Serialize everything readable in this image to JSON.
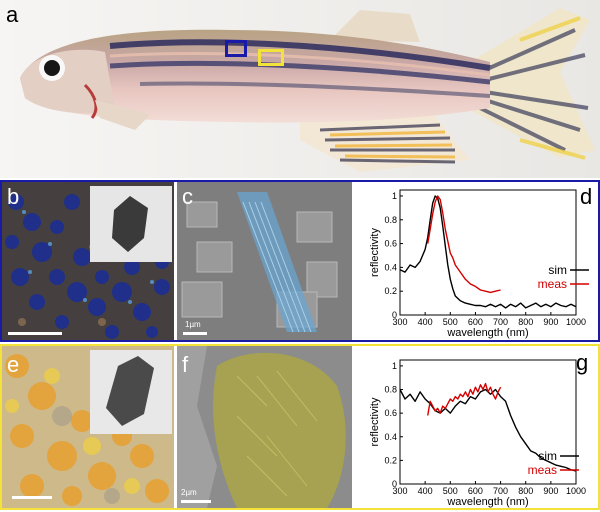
{
  "panels": {
    "a": {
      "label": "a"
    },
    "b": {
      "label": "b"
    },
    "c": {
      "label": "c",
      "scale_text": "1µm"
    },
    "d": {
      "label": "d"
    },
    "e": {
      "label": "e"
    },
    "f": {
      "label": "f",
      "scale_text": "2µm"
    },
    "g": {
      "label": "g"
    }
  },
  "colors": {
    "sim": "#000000",
    "meas": "#d40000",
    "blue_frame": "#1a1aa8",
    "yellow_frame": "#f2e23a"
  },
  "chart_data": [
    {
      "type": "line",
      "panel": "d",
      "xlabel": "wavelength (nm)",
      "ylabel": "reflectivity",
      "xlim": [
        300,
        1000
      ],
      "ylim": [
        0,
        1.05
      ],
      "xticks": [
        300,
        400,
        500,
        600,
        700,
        800,
        900,
        1000
      ],
      "yticks": [
        0,
        0.2,
        0.4,
        0.6,
        0.8,
        1
      ],
      "ytick_labels": [
        "0",
        "0.2",
        "0.4",
        "0.6",
        "0.8",
        "1"
      ],
      "legend": "right",
      "series": [
        {
          "name": "sim",
          "color": "#000000",
          "x": [
            300,
            320,
            340,
            360,
            380,
            400,
            410,
            420,
            430,
            440,
            450,
            460,
            470,
            480,
            490,
            500,
            510,
            520,
            540,
            560,
            580,
            600,
            620,
            640,
            660,
            680,
            700,
            720,
            740,
            760,
            780,
            800,
            820,
            840,
            860,
            880,
            900,
            920,
            940,
            960,
            980,
            1000
          ],
          "y": [
            0.38,
            0.36,
            0.42,
            0.4,
            0.45,
            0.55,
            0.65,
            0.8,
            0.94,
            1.0,
            0.98,
            0.9,
            0.75,
            0.58,
            0.42,
            0.3,
            0.22,
            0.16,
            0.12,
            0.1,
            0.09,
            0.08,
            0.08,
            0.07,
            0.09,
            0.07,
            0.09,
            0.06,
            0.09,
            0.07,
            0.1,
            0.06,
            0.08,
            0.1,
            0.07,
            0.09,
            0.07,
            0.1,
            0.08,
            0.07,
            0.09,
            0.07
          ]
        },
        {
          "name": "meas",
          "color": "#d40000",
          "x": [
            410,
            420,
            430,
            440,
            450,
            460,
            470,
            480,
            490,
            500,
            510,
            520,
            540,
            560,
            580,
            600,
            620,
            640,
            660,
            680,
            700
          ],
          "y": [
            0.6,
            0.72,
            0.85,
            0.95,
            1.0,
            0.97,
            0.86,
            0.72,
            0.62,
            0.52,
            0.48,
            0.42,
            0.36,
            0.3,
            0.26,
            0.24,
            0.21,
            0.2,
            0.19,
            0.2,
            0.21
          ]
        }
      ]
    },
    {
      "type": "line",
      "panel": "g",
      "xlabel": "wavelength (nm)",
      "ylabel": "reflectivity",
      "xlim": [
        300,
        1000
      ],
      "ylim": [
        0,
        1.05
      ],
      "xticks": [
        300,
        400,
        500,
        600,
        700,
        800,
        900,
        1000
      ],
      "yticks": [
        0,
        0.2,
        0.4,
        0.6,
        0.8,
        1
      ],
      "ytick_labels": [
        "0",
        "0.2",
        "0.4",
        "0.6",
        "0.8",
        "1"
      ],
      "legend": "right",
      "series": [
        {
          "name": "sim",
          "color": "#000000",
          "x": [
            300,
            320,
            340,
            360,
            380,
            400,
            420,
            440,
            460,
            480,
            500,
            520,
            540,
            560,
            580,
            600,
            620,
            640,
            660,
            680,
            700,
            720,
            740,
            760,
            780,
            800,
            820,
            840,
            860,
            880,
            900,
            920,
            940,
            960,
            980,
            1000
          ],
          "y": [
            0.8,
            0.72,
            0.76,
            0.7,
            0.78,
            0.72,
            0.68,
            0.62,
            0.6,
            0.64,
            0.6,
            0.66,
            0.7,
            0.68,
            0.74,
            0.72,
            0.78,
            0.8,
            0.76,
            0.8,
            0.74,
            0.7,
            0.58,
            0.48,
            0.4,
            0.34,
            0.28,
            0.26,
            0.22,
            0.2,
            0.18,
            0.16,
            0.15,
            0.14,
            0.12,
            0.11
          ]
        },
        {
          "name": "meas",
          "color": "#d40000",
          "x": [
            410,
            420,
            430,
            440,
            450,
            460,
            470,
            480,
            490,
            500,
            510,
            520,
            530,
            540,
            550,
            560,
            570,
            580,
            590,
            600,
            610,
            620,
            630,
            640,
            650,
            660,
            670,
            680,
            690,
            700
          ],
          "y": [
            0.58,
            0.7,
            0.66,
            0.62,
            0.64,
            0.6,
            0.66,
            0.64,
            0.68,
            0.72,
            0.7,
            0.74,
            0.72,
            0.76,
            0.74,
            0.78,
            0.74,
            0.8,
            0.76,
            0.82,
            0.78,
            0.84,
            0.8,
            0.85,
            0.78,
            0.82,
            0.76,
            0.72,
            0.78,
            0.82
          ]
        }
      ]
    }
  ]
}
